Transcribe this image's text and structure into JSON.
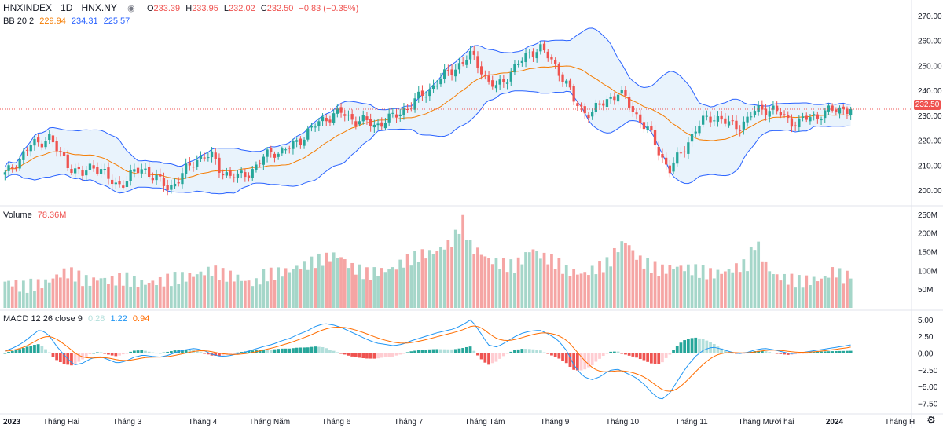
{
  "header": {
    "symbol": "HNXINDEX",
    "interval": "1D",
    "exchange": "HNX.NY",
    "ohlc": {
      "o_label": "O",
      "o": "233.39",
      "h_label": "H",
      "h": "233.95",
      "l_label": "L",
      "l": "232.02",
      "c_label": "C",
      "c": "232.50",
      "change": "−0.83 (−0.35%)"
    }
  },
  "bb_legend": {
    "label": "BB 20 2",
    "basis": "229.94",
    "upper": "234.31",
    "lower": "225.57"
  },
  "volume_legend": {
    "label": "Volume",
    "value": "78.36M"
  },
  "macd_legend": {
    "label": "MACD 12 26 close 9",
    "hist": "0.28",
    "macd": "1.22",
    "signal": "0.94"
  },
  "last_price_tag": "232.50",
  "colors": {
    "up": "#26a69a",
    "down": "#ef5350",
    "bb_basis": "#f57c00",
    "bb_band": "#2962ff",
    "bb_fill": "#e3f0fb",
    "macd": "#2196f3",
    "signal": "#ff6d00"
  },
  "icons": {
    "eye": "eye-icon",
    "menu": "more-icon",
    "settings": "gear-icon"
  },
  "chart_data": {
    "type": "candlestick",
    "price_axis": {
      "min": 195,
      "max": 275,
      "ticks": [
        "270.00",
        "260.00",
        "250.00",
        "240.00",
        "230.00",
        "220.00",
        "210.00",
        "200.00"
      ]
    },
    "volume_axis": {
      "ticks": [
        "250M",
        "200M",
        "150M",
        "100M",
        "50M"
      ]
    },
    "macd_axis": {
      "ticks": [
        "5.00",
        "2.50",
        "0.00",
        "−2.50",
        "−5.00",
        "−7.50"
      ]
    },
    "time_labels": [
      "2023",
      "Tháng Hai",
      "Tháng 3",
      "Tháng 4",
      "Tháng Năm",
      "Tháng 6",
      "Tháng 7",
      "Tháng Tám",
      "Tháng 9",
      "Tháng 10",
      "Tháng 11",
      "Tháng Mười hai",
      "2024",
      "Tháng H"
    ],
    "close_path": [
      206,
      210,
      214,
      218,
      219,
      222,
      216,
      212,
      208,
      206,
      210,
      209,
      204,
      202,
      204,
      207,
      209,
      206,
      203,
      201,
      204,
      208,
      212,
      214,
      213,
      208,
      206,
      205,
      207,
      209,
      213,
      216,
      215,
      217,
      220,
      223,
      226,
      229,
      230,
      231,
      229,
      228,
      227,
      226,
      228,
      229,
      232,
      234,
      237,
      240,
      243,
      246,
      249,
      251,
      254,
      250,
      243,
      241,
      245,
      249,
      252,
      256,
      257,
      253,
      249,
      243,
      235,
      232,
      231,
      234,
      237,
      239,
      236,
      231,
      226,
      221,
      214,
      208,
      213,
      219,
      224,
      228,
      230,
      228,
      226,
      226,
      228,
      232,
      233,
      232,
      230,
      228,
      227,
      229,
      230,
      231,
      232,
      233,
      232.5
    ],
    "volume_profile_M": [
      70,
      65,
      55,
      60,
      62,
      70,
      85,
      95,
      90,
      75,
      70,
      80,
      72,
      75,
      78,
      70,
      65,
      68,
      70,
      75,
      80,
      82,
      88,
      95,
      100,
      90,
      85,
      80,
      70,
      65,
      88,
      90,
      95,
      100,
      110,
      115,
      125,
      130,
      140,
      135,
      110,
      100,
      90,
      95,
      100,
      105,
      120,
      130,
      140,
      145,
      150,
      165,
      180,
      235,
      160,
      150,
      130,
      120,
      115,
      110,
      130,
      160,
      140,
      130,
      120,
      100,
      95,
      90,
      100,
      110,
      120,
      160,
      180,
      140,
      120,
      110,
      100,
      105,
      110,
      105,
      100,
      95,
      90,
      95,
      100,
      110,
      115,
      180,
      120,
      90,
      80,
      75,
      70,
      72,
      75,
      80,
      100,
      85,
      78.36
    ],
    "macd_profile": [
      0.3,
      0.8,
      1.5,
      2.5,
      3.5,
      2.8,
      1.0,
      -0.5,
      -1.8,
      -1.5,
      -0.8,
      -0.5,
      -1.0,
      -1.5,
      -1.2,
      -0.6,
      -0.3,
      -0.5,
      -0.6,
      -0.3,
      0.2,
      0.5,
      0.7,
      0.4,
      -0.2,
      -0.5,
      -0.4,
      -0.1,
      0.2,
      0.6,
      1.0,
      1.3,
      1.8,
      2.2,
      2.8,
      3.3,
      4.0,
      4.4,
      4.2,
      3.8,
      3.2,
      2.6,
      2.0,
      1.5,
      1.3,
      1.1,
      1.3,
      1.8,
      2.2,
      2.6,
      3.0,
      3.3,
      3.6,
      4.2,
      5.0,
      3.2,
      1.2,
      0.9,
      1.6,
      2.4,
      3.0,
      3.3,
      3.4,
      2.8,
      2.0,
      0.5,
      -2.0,
      -3.5,
      -4.0,
      -3.5,
      -2.6,
      -2.4,
      -3.0,
      -3.6,
      -4.6,
      -6.0,
      -7.0,
      -6.0,
      -4.0,
      -2.0,
      -0.5,
      0.5,
      0.9,
      0.6,
      0.2,
      -0.1,
      0.1,
      0.5,
      0.7,
      0.5,
      0.2,
      -0.1,
      0.0,
      0.2,
      0.4,
      0.6,
      0.8,
      1.0,
      1.22
    ]
  }
}
